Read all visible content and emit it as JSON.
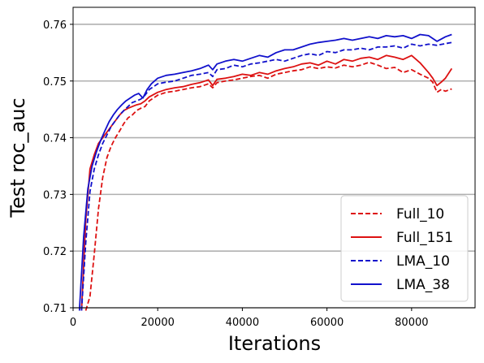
{
  "chart_data": {
    "type": "line",
    "title": "",
    "xlabel": "Iterations",
    "ylabel": "Test roc_auc",
    "xlim": [
      0,
      95000
    ],
    "ylim": [
      0.71,
      0.763
    ],
    "xticks": [
      0,
      20000,
      40000,
      60000,
      80000
    ],
    "xtick_labels": [
      "0",
      "20000",
      "40000",
      "60000",
      "80000"
    ],
    "yticks": [
      0.71,
      0.72,
      0.73,
      0.74,
      0.75,
      0.76
    ],
    "ytick_labels": [
      "0.71",
      "0.72",
      "0.73",
      "0.74",
      "0.75",
      "0.76"
    ],
    "grid": "horizontal",
    "legend_position": "lower-right",
    "series": [
      {
        "name": "Full_10",
        "color": "#dd1111",
        "dash": "dashed",
        "x": [
          3000,
          4000,
          5000,
          6000,
          7000,
          8000,
          9000,
          10000,
          11000,
          12000,
          13000,
          14000,
          15000,
          16000,
          17000,
          18000,
          20000,
          22000,
          24000,
          26000,
          28000,
          30000,
          32000,
          33000,
          34000,
          36000,
          38000,
          40000,
          42000,
          44000,
          46000,
          48000,
          50000,
          52000,
          54000,
          56000,
          58000,
          60000,
          62000,
          64000,
          66000,
          68000,
          70000,
          72000,
          74000,
          76000,
          78000,
          80000,
          82000,
          84000,
          85000,
          86000,
          87000,
          88000,
          89500
        ],
        "y": [
          0.7095,
          0.712,
          0.7195,
          0.7275,
          0.733,
          0.7365,
          0.7385,
          0.74,
          0.7412,
          0.7425,
          0.7435,
          0.744,
          0.7448,
          0.7452,
          0.7455,
          0.7465,
          0.7475,
          0.748,
          0.7482,
          0.7485,
          0.7488,
          0.749,
          0.7495,
          0.7488,
          0.7497,
          0.75,
          0.7502,
          0.7505,
          0.7508,
          0.751,
          0.7505,
          0.7512,
          0.7515,
          0.7518,
          0.752,
          0.7525,
          0.7522,
          0.7525,
          0.7523,
          0.7528,
          0.7525,
          0.7528,
          0.7533,
          0.7528,
          0.7522,
          0.7524,
          0.7515,
          0.752,
          0.7512,
          0.7505,
          0.7498,
          0.748,
          0.7485,
          0.7482,
          0.7486
        ]
      },
      {
        "name": "Full_151",
        "color": "#dd1111",
        "dash": "solid",
        "x": [
          2000,
          3000,
          4000,
          5000,
          6000,
          7000,
          8000,
          9000,
          10000,
          11000,
          12000,
          13000,
          14000,
          15000,
          16000,
          17000,
          18000,
          20000,
          22000,
          24000,
          26000,
          28000,
          30000,
          32000,
          33000,
          34000,
          36000,
          38000,
          40000,
          42000,
          44000,
          46000,
          48000,
          50000,
          52000,
          54000,
          56000,
          58000,
          60000,
          62000,
          64000,
          66000,
          68000,
          70000,
          72000,
          74000,
          76000,
          78000,
          80000,
          82000,
          84000,
          85000,
          86000,
          87000,
          88000,
          89500
        ],
        "y": [
          0.7095,
          0.7255,
          0.7345,
          0.737,
          0.739,
          0.74,
          0.741,
          0.742,
          0.743,
          0.744,
          0.7448,
          0.7452,
          0.7455,
          0.7458,
          0.746,
          0.7465,
          0.7472,
          0.748,
          0.7485,
          0.7488,
          0.749,
          0.7494,
          0.7497,
          0.7502,
          0.7492,
          0.7503,
          0.7505,
          0.7508,
          0.7512,
          0.751,
          0.7515,
          0.7512,
          0.7518,
          0.7522,
          0.7525,
          0.753,
          0.7532,
          0.7528,
          0.7535,
          0.753,
          0.7538,
          0.7535,
          0.754,
          0.7542,
          0.7538,
          0.7545,
          0.7542,
          0.7538,
          0.7545,
          0.7532,
          0.7515,
          0.7505,
          0.7492,
          0.7498,
          0.7505,
          0.7522
        ]
      },
      {
        "name": "LMA_10",
        "color": "#1111cc",
        "dash": "dashed",
        "x": [
          2000,
          3000,
          4000,
          5000,
          6000,
          7000,
          8000,
          9000,
          10000,
          11000,
          12000,
          13000,
          14000,
          15000,
          16000,
          17000,
          18000,
          20000,
          22000,
          24000,
          26000,
          28000,
          30000,
          32000,
          33000,
          34000,
          36000,
          38000,
          40000,
          42000,
          44000,
          46000,
          48000,
          50000,
          52000,
          54000,
          56000,
          58000,
          60000,
          62000,
          64000,
          66000,
          68000,
          70000,
          72000,
          74000,
          76000,
          78000,
          80000,
          82000,
          84000,
          86000,
          88000,
          89500
        ],
        "y": [
          0.7095,
          0.7215,
          0.7305,
          0.7345,
          0.737,
          0.739,
          0.7405,
          0.742,
          0.743,
          0.744,
          0.7448,
          0.7455,
          0.7462,
          0.7465,
          0.7468,
          0.7475,
          0.7485,
          0.7495,
          0.7498,
          0.75,
          0.7505,
          0.751,
          0.7512,
          0.7515,
          0.7508,
          0.752,
          0.7522,
          0.7528,
          0.7525,
          0.753,
          0.7532,
          0.7535,
          0.7538,
          0.7535,
          0.754,
          0.7545,
          0.7548,
          0.7545,
          0.7552,
          0.755,
          0.7555,
          0.7555,
          0.7558,
          0.7555,
          0.756,
          0.756,
          0.7562,
          0.7558,
          0.7565,
          0.7562,
          0.7565,
          0.7563,
          0.7566,
          0.7568
        ]
      },
      {
        "name": "LMA_38",
        "color": "#1111cc",
        "dash": "solid",
        "x": [
          1500,
          2500,
          3500,
          4500,
          5500,
          6500,
          7500,
          8500,
          9500,
          10500,
          11500,
          12500,
          13500,
          14500,
          15500,
          16500,
          17500,
          18500,
          20000,
          22000,
          24000,
          26000,
          28000,
          30000,
          32000,
          33000,
          34000,
          36000,
          38000,
          40000,
          42000,
          44000,
          46000,
          48000,
          50000,
          52000,
          54000,
          56000,
          58000,
          60000,
          62000,
          64000,
          66000,
          68000,
          70000,
          72000,
          74000,
          76000,
          78000,
          80000,
          82000,
          84000,
          86000,
          88000,
          89500
        ],
        "y": [
          0.7095,
          0.7225,
          0.731,
          0.735,
          0.7375,
          0.7395,
          0.7412,
          0.7428,
          0.744,
          0.745,
          0.7458,
          0.7465,
          0.747,
          0.7475,
          0.7478,
          0.747,
          0.7485,
          0.7495,
          0.7505,
          0.751,
          0.7512,
          0.7515,
          0.7518,
          0.7522,
          0.7528,
          0.752,
          0.753,
          0.7535,
          0.7538,
          0.7535,
          0.754,
          0.7545,
          0.7542,
          0.755,
          0.7555,
          0.7555,
          0.756,
          0.7565,
          0.7568,
          0.757,
          0.7572,
          0.7575,
          0.7572,
          0.7575,
          0.7578,
          0.7575,
          0.758,
          0.7578,
          0.758,
          0.7575,
          0.7582,
          0.758,
          0.757,
          0.7578,
          0.7582
        ]
      }
    ]
  }
}
